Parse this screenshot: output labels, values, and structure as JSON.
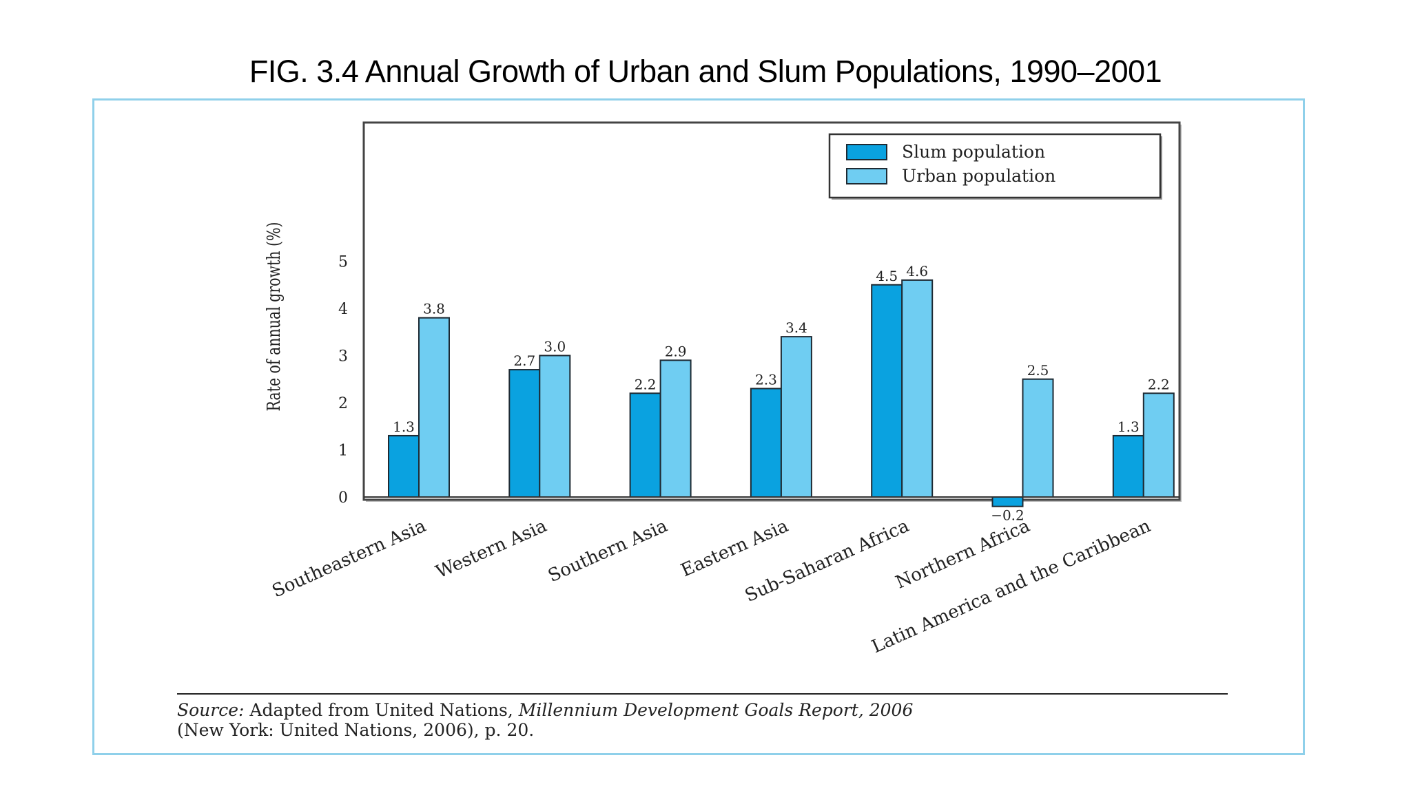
{
  "slide": {
    "title": "FIG. 3.4 Annual Growth of Urban and Slum Populations, 1990–2001"
  },
  "source": {
    "label": "Source:",
    "text1": " Adapted from United Nations, ",
    "publication": "Millennium Development Goals Report, 2006",
    "text2": "(New York: United Nations, 2006), p. 20."
  },
  "colors": {
    "slum": "#0aa2e0",
    "urban": "#6fcdf2",
    "frame": "#8fd0ea"
  },
  "chart_data": {
    "type": "bar",
    "title": "",
    "xlabel": "",
    "ylabel": "Rate of annual growth (%)",
    "ylim": [
      -0.3,
      8
    ],
    "yticks": [
      0,
      1,
      2,
      3,
      4,
      5
    ],
    "grid": false,
    "legend_position": "top-right",
    "categories": [
      "Southeastern Asia",
      "Western Asia",
      "Southern Asia",
      "Eastern Asia",
      "Sub-Saharan Africa",
      "Northern Africa",
      "Latin America and the Caribbean"
    ],
    "series": [
      {
        "name": "Slum population",
        "values": [
          1.3,
          2.7,
          2.2,
          2.3,
          4.5,
          -0.2,
          1.3
        ],
        "labels": [
          "1.3",
          "2.7",
          "2.2",
          "2.3",
          "4.5",
          "−0.2",
          "1.3"
        ]
      },
      {
        "name": "Urban population",
        "values": [
          3.8,
          3.0,
          2.9,
          3.4,
          4.6,
          2.5,
          2.2
        ],
        "labels": [
          "3.8",
          "3.0",
          "2.9",
          "3.4",
          "4.6",
          "2.5",
          "2.2"
        ]
      }
    ]
  }
}
